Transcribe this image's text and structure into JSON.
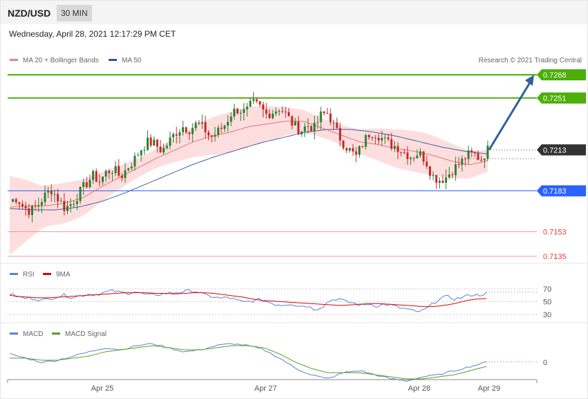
{
  "header": {
    "pair": "NZD/USD",
    "timeframe": "30 MIN"
  },
  "timestamp": "Wednesday, April 28, 2021 12:17:29 PM CET",
  "credit": "Research © 2021 Trading Central",
  "colors": {
    "candle_up": "#2e7d32",
    "candle_down": "#c62828",
    "ma20": "#e57373",
    "ma50": "#3f5fa8",
    "bands": "#fdd8d8",
    "target": "#4caf0a",
    "support": "#2962ff",
    "resistance_low": "#e53935",
    "arrow": "#2f5f9e",
    "current": "#333333",
    "rsi": "#5b7fd6",
    "rsi_ma": "#e00000",
    "macd": "#5b7fd6",
    "macd_signal": "#5aa020"
  },
  "chart_data": [
    {
      "type": "candlestick",
      "title": "NZD/USD",
      "timeframe": "30 MIN",
      "legend": [
        {
          "name": "MA 20 + Bollinger Bands",
          "color": "#f08080"
        },
        {
          "name": "MA 50",
          "color": "#2f5597"
        }
      ],
      "price_range": [
        0.7125,
        0.7275
      ],
      "x_ticks": [
        "Apr 25",
        "Apr 27",
        "Apr 28",
        "Apr 29"
      ],
      "levels": [
        {
          "label": "0.7268",
          "value": 0.7268,
          "kind": "target"
        },
        {
          "label": "0.7251",
          "value": 0.7251,
          "kind": "target"
        },
        {
          "label": "0.7213",
          "value": 0.7213,
          "kind": "current"
        },
        {
          "label": "0.7183",
          "value": 0.7183,
          "kind": "support"
        },
        {
          "label": "0.7153",
          "value": 0.7153,
          "kind": "resistance_low"
        },
        {
          "label": "0.7135",
          "value": 0.7135,
          "kind": "resistance_low"
        }
      ],
      "close_path": [
        0.7175,
        0.7178,
        0.7171,
        0.7168,
        0.7172,
        0.7179,
        0.7184,
        0.7177,
        0.717,
        0.7174,
        0.7181,
        0.7188,
        0.7194,
        0.719,
        0.7197,
        0.7199,
        0.7193,
        0.72,
        0.7206,
        0.7214,
        0.7219,
        0.7217,
        0.7212,
        0.7219,
        0.7226,
        0.723,
        0.7228,
        0.7232,
        0.7229,
        0.7222,
        0.7226,
        0.7231,
        0.724,
        0.7243,
        0.724,
        0.7247,
        0.7245,
        0.7239,
        0.7241,
        0.7244,
        0.7238,
        0.7231,
        0.7227,
        0.7231,
        0.7229,
        0.7239,
        0.724,
        0.7228,
        0.7219,
        0.7213,
        0.7208,
        0.7218,
        0.7226,
        0.7225,
        0.722,
        0.7217,
        0.7215,
        0.7211,
        0.7208,
        0.7211,
        0.7206,
        0.7194,
        0.7191,
        0.7193,
        0.7199,
        0.7203,
        0.7209,
        0.721,
        0.7206,
        0.7213
      ],
      "ma20_path": [
        0.7171,
        0.7172,
        0.7172,
        0.7174,
        0.7178,
        0.7186,
        0.7193,
        0.72,
        0.7207,
        0.7213,
        0.7219,
        0.7223,
        0.7226,
        0.723,
        0.7232,
        0.7234,
        0.7234,
        0.7229,
        0.7224,
        0.7219,
        0.7217,
        0.7214,
        0.7212,
        0.7209,
        0.7205,
        0.7202,
        0.7205
      ],
      "ma50_path": [
        0.717,
        0.7169,
        0.7169,
        0.7171,
        0.7175,
        0.7181,
        0.7188,
        0.7195,
        0.7202,
        0.7208,
        0.7213,
        0.7218,
        0.7222,
        0.7226,
        0.7228,
        0.7228,
        0.7226,
        0.7223,
        0.7219,
        0.7215,
        0.7212,
        0.721
      ],
      "projection": {
        "from": 0.7213,
        "to": 0.7268
      }
    },
    {
      "type": "line",
      "legend": [
        {
          "name": "RSI",
          "color": "#5b7fd6"
        },
        {
          "name": "9MA",
          "color": "#e00000"
        }
      ],
      "levels": [
        "70",
        "50",
        "30"
      ],
      "ylim": [
        20,
        80
      ],
      "rsi": [
        62,
        58,
        55,
        56,
        52,
        54,
        58,
        60,
        57,
        59,
        62,
        61,
        64,
        67,
        65,
        63,
        66,
        62,
        60,
        61,
        63,
        64,
        65,
        67,
        66,
        60,
        58,
        55,
        57,
        52,
        49,
        51,
        53,
        50,
        46,
        45,
        47,
        43,
        44,
        38,
        42,
        52,
        55,
        50,
        48,
        44,
        47,
        43,
        46,
        44,
        40,
        38,
        34,
        36,
        45,
        55,
        58,
        54,
        57,
        61,
        60,
        63
      ],
      "rsi_ma": [
        60,
        58,
        57,
        56,
        56,
        57,
        58,
        59,
        60,
        61,
        62,
        63,
        64,
        64,
        64,
        63,
        63,
        62,
        63,
        64,
        64,
        63,
        61,
        59,
        57,
        54,
        52,
        51,
        50,
        49,
        48,
        47,
        46,
        45,
        44,
        45,
        46,
        47,
        47,
        46,
        45,
        44,
        43,
        42,
        43,
        45,
        48,
        52,
        54,
        55
      ]
    },
    {
      "type": "line",
      "legend": [
        {
          "name": "MACD",
          "color": "#5b7fd6"
        },
        {
          "name": "MACD Signal",
          "color": "#5aa020"
        }
      ],
      "levels": [
        "0"
      ],
      "ylim": [
        -0.0012,
        0.0012
      ],
      "macd": [
        0.0004,
        0.0002,
        0.0,
        0.0001,
        0.0003,
        0.0005,
        0.0007,
        0.0006,
        0.0008,
        0.0009,
        0.0007,
        0.0005,
        0.0006,
        0.0008,
        0.0009,
        0.0008,
        0.0006,
        0.0002,
        -0.0003,
        -0.0006,
        -0.0008,
        -0.0005,
        -0.0004,
        -0.0006,
        -0.0008,
        -0.0009,
        -0.0007,
        -0.0006,
        -0.0004,
        -0.0002,
        0.0
      ],
      "signal": [
        0.0002,
        0.0002,
        0.0001,
        0.0001,
        0.0002,
        0.0003,
        0.0005,
        0.0006,
        0.0007,
        0.0008,
        0.0007,
        0.0006,
        0.0006,
        0.0007,
        0.0008,
        0.0008,
        0.0007,
        0.0004,
        0.0,
        -0.0003,
        -0.0005,
        -0.0005,
        -0.0005,
        -0.0006,
        -0.0007,
        -0.0008,
        -0.0008,
        -0.0007,
        -0.0006,
        -0.0004,
        -0.0002
      ]
    }
  ]
}
